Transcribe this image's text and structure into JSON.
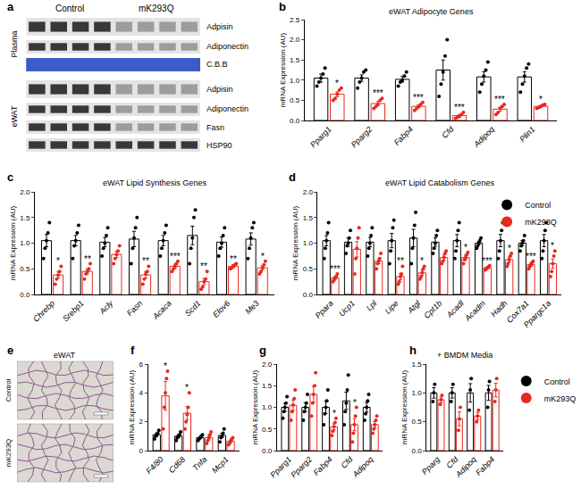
{
  "blot": {
    "panel_label": "a",
    "groups": [
      "Control",
      "mK293Q"
    ],
    "sections": [
      {
        "name": "Plasma",
        "rows": [
          {
            "label": "Adpisin",
            "reduced": true
          },
          {
            "label": "Adiponectin",
            "reduced": true
          },
          {
            "label": "C.B.B",
            "reduced": false,
            "kind": "stain"
          }
        ]
      },
      {
        "name": "eWAT",
        "rows": [
          {
            "label": "Adpisin",
            "reduced": true
          },
          {
            "label": "Adiponectin",
            "reduced": true
          },
          {
            "label": "Fasn",
            "reduced": true
          },
          {
            "label": "HSP90",
            "reduced": false
          }
        ]
      }
    ]
  },
  "histology": {
    "panel_label": "e",
    "title": "eWAT",
    "rows": [
      "Control",
      "mK293Q"
    ]
  },
  "chart_data": [
    {
      "type": "bar",
      "panel_label": "b",
      "title": "eWAT Adipocyte Genes",
      "y_label": "mRNA Expression (AU)",
      "categories": [
        "Pparg1",
        "Pparg2",
        "Fabp4",
        "Cfd",
        "Adipoq",
        "Plin1"
      ],
      "ylim": [
        0,
        2.5
      ],
      "yticks": [
        {
          "value": 0,
          "label": "0.0"
        },
        {
          "value": 0.5,
          "label": "0.5"
        },
        {
          "value": 1,
          "label": "1.0"
        },
        {
          "value": 1.5,
          "label": "1.5"
        },
        {
          "value": 2,
          "label": "2.0"
        },
        {
          "value": 2.5,
          "label": "2.5"
        }
      ],
      "series": [
        {
          "name": "Control",
          "color": "#000000",
          "values": [
            1.05,
            1.05,
            1.02,
            1.25,
            1.08,
            1.08
          ],
          "errors": [
            0.1,
            0.08,
            0.07,
            0.25,
            0.13,
            0.13
          ],
          "points": [
            [
              0.85,
              0.95,
              1.05,
              1.15,
              1.3
            ],
            [
              0.8,
              0.95,
              1.05,
              1.2,
              1.25
            ],
            [
              0.85,
              0.95,
              1.0,
              1.1,
              1.2
            ],
            [
              0.6,
              0.9,
              1.2,
              1.6,
              2.0
            ],
            [
              0.7,
              0.9,
              1.1,
              1.25,
              1.45
            ],
            [
              0.7,
              0.9,
              1.1,
              1.3,
              1.4
            ]
          ]
        },
        {
          "name": "mK293Q",
          "color": "#e8281e",
          "values": [
            0.65,
            0.42,
            0.35,
            0.12,
            0.28,
            0.35
          ],
          "errors": [
            0.06,
            0.05,
            0.04,
            0.03,
            0.05,
            0.02
          ],
          "points": [
            [
              0.5,
              0.55,
              0.65,
              0.75,
              0.8
            ],
            [
              0.3,
              0.35,
              0.4,
              0.5,
              0.55
            ],
            [
              0.25,
              0.3,
              0.35,
              0.4,
              0.45
            ],
            [
              0.05,
              0.08,
              0.1,
              0.15,
              0.2
            ],
            [
              0.15,
              0.2,
              0.3,
              0.35,
              0.4
            ],
            [
              0.3,
              0.32,
              0.35,
              0.38,
              0.4
            ]
          ],
          "significance": [
            "*",
            "***",
            "***",
            "***",
            "***",
            "*"
          ]
        }
      ]
    },
    {
      "type": "bar",
      "panel_label": "c",
      "title": "eWAT Lipid Synthesis Genes",
      "y_label": "mRNA Expression (AU)",
      "categories": [
        "Chrebp",
        "Srebp1",
        "Acly",
        "Fasn",
        "Acaca",
        "Scd1",
        "Elov6",
        "Me3"
      ],
      "ylim": [
        0,
        2
      ],
      "yticks": [
        {
          "value": 0,
          "label": "0.0"
        },
        {
          "value": 0.5,
          "label": "0.5"
        },
        {
          "value": 1,
          "label": "1.0"
        },
        {
          "value": 1.5,
          "label": "1.5"
        },
        {
          "value": 2,
          "label": "2.0"
        }
      ],
      "series": [
        {
          "name": "Control",
          "color": "#000000",
          "values": [
            1.05,
            1.05,
            1.02,
            1.08,
            1.05,
            1.15,
            1.02,
            1.08
          ],
          "errors": [
            0.12,
            0.1,
            0.09,
            0.15,
            0.1,
            0.18,
            0.1,
            0.12
          ],
          "points": [
            [
              0.7,
              0.9,
              1.05,
              1.2,
              1.4
            ],
            [
              0.7,
              0.95,
              1.05,
              1.2,
              1.35
            ],
            [
              0.75,
              0.9,
              1.0,
              1.15,
              1.3
            ],
            [
              0.6,
              0.9,
              1.1,
              1.3,
              1.5
            ],
            [
              0.75,
              0.9,
              1.05,
              1.2,
              1.35
            ],
            [
              0.6,
              0.9,
              1.1,
              1.5,
              1.65
            ],
            [
              0.75,
              0.9,
              1.0,
              1.15,
              1.3
            ],
            [
              0.7,
              0.9,
              1.1,
              1.3,
              1.4
            ]
          ]
        },
        {
          "name": "mK293Q",
          "color": "#e8281e",
          "values": [
            0.38,
            0.45,
            0.78,
            0.38,
            0.55,
            0.25,
            0.55,
            0.52
          ],
          "errors": [
            0.06,
            0.05,
            0.06,
            0.06,
            0.04,
            0.06,
            0.03,
            0.04
          ],
          "points": [
            [
              0.2,
              0.3,
              0.38,
              0.45,
              0.55
            ],
            [
              0.3,
              0.4,
              0.45,
              0.5,
              0.6
            ],
            [
              0.6,
              0.7,
              0.78,
              0.85,
              0.95
            ],
            [
              0.2,
              0.3,
              0.4,
              0.45,
              0.55
            ],
            [
              0.45,
              0.5,
              0.55,
              0.6,
              0.65
            ],
            [
              0.1,
              0.15,
              0.25,
              0.3,
              0.45
            ],
            [
              0.5,
              0.52,
              0.55,
              0.58,
              0.6
            ],
            [
              0.4,
              0.45,
              0.52,
              0.58,
              0.65
            ]
          ],
          "significance": [
            "*",
            "**",
            null,
            "**",
            "***",
            "**",
            "**",
            "*"
          ]
        }
      ]
    },
    {
      "type": "bar",
      "panel_label": "d",
      "title": "eWAT Lipid Catabolism Genes",
      "y_label": "mRNA Expression (AU)",
      "categories": [
        "Ppara",
        "Ucp1",
        "Lpl",
        "Lipe",
        "Atgl",
        "Cpt1b",
        "Acadl",
        "Acadm",
        "Hadh",
        "Cox7a1",
        "Ppargc1a"
      ],
      "ylim": [
        0,
        2
      ],
      "yticks": [
        {
          "value": 0,
          "label": "0.0"
        },
        {
          "value": 0.5,
          "label": "0.5"
        },
        {
          "value": 1,
          "label": "1.0"
        },
        {
          "value": 1.5,
          "label": "1.5"
        },
        {
          "value": 2,
          "label": "2.0"
        }
      ],
      "legend": "top right",
      "series": [
        {
          "name": "Control",
          "color": "#000000",
          "values": [
            1.05,
            1.02,
            1.02,
            1.05,
            1.1,
            1.02,
            1.05,
            1.0,
            1.05,
            1.0,
            1.05
          ],
          "errors": [
            0.1,
            0.08,
            0.09,
            0.14,
            0.17,
            0.08,
            0.12,
            0.03,
            0.12,
            0.05,
            0.12
          ],
          "points": [
            [
              0.7,
              0.9,
              1.05,
              1.2,
              1.4
            ],
            [
              0.8,
              0.95,
              1.0,
              1.1,
              1.25
            ],
            [
              0.75,
              0.9,
              1.0,
              1.15,
              1.3
            ],
            [
              0.6,
              0.85,
              1.05,
              1.3,
              1.45
            ],
            [
              0.6,
              0.9,
              1.1,
              1.35,
              1.6
            ],
            [
              0.8,
              0.9,
              1.0,
              1.15,
              1.25
            ],
            [
              0.7,
              0.85,
              1.05,
              1.25,
              1.4
            ],
            [
              0.9,
              0.95,
              1.0,
              1.05,
              1.1
            ],
            [
              0.7,
              0.85,
              1.05,
              1.25,
              1.4
            ],
            [
              0.85,
              0.95,
              1.0,
              1.05,
              1.15
            ],
            [
              0.7,
              0.85,
              1.05,
              1.25,
              1.4
            ]
          ]
        },
        {
          "name": "mK293Q",
          "color": "#e8281e",
          "values": [
            0.32,
            0.88,
            0.65,
            0.35,
            0.42,
            0.72,
            0.72,
            0.52,
            0.68,
            0.58,
            0.6
          ],
          "errors": [
            0.03,
            0.15,
            0.05,
            0.06,
            0.05,
            0.05,
            0.04,
            0.02,
            0.05,
            0.03,
            0.09
          ],
          "points": [
            [
              0.25,
              0.28,
              0.32,
              0.35,
              0.4
            ],
            [
              0.4,
              0.7,
              0.9,
              1.1,
              1.3
            ],
            [
              0.5,
              0.6,
              0.65,
              0.7,
              0.8
            ],
            [
              0.2,
              0.25,
              0.35,
              0.4,
              0.55
            ],
            [
              0.3,
              0.35,
              0.42,
              0.5,
              0.55
            ],
            [
              0.6,
              0.65,
              0.72,
              0.8,
              0.85
            ],
            [
              0.6,
              0.68,
              0.72,
              0.78,
              0.82
            ],
            [
              0.48,
              0.5,
              0.52,
              0.54,
              0.56
            ],
            [
              0.55,
              0.6,
              0.68,
              0.75,
              0.8
            ],
            [
              0.5,
              0.55,
              0.58,
              0.62,
              0.65
            ],
            [
              0.35,
              0.45,
              0.6,
              0.75,
              0.85
            ]
          ],
          "significance": [
            "***",
            null,
            null,
            "**",
            "*",
            null,
            "*",
            "***",
            "*",
            "***",
            "*"
          ]
        }
      ]
    },
    {
      "type": "bar",
      "panel_label": "f",
      "y_label": "mRNA Expression (AU)",
      "categories": [
        "F4/80",
        "Cd68",
        "Tnfa",
        "Mcp1"
      ],
      "ylim": [
        0,
        6
      ],
      "yticks": [
        0,
        2,
        4,
        6
      ],
      "series": [
        {
          "name": "Control",
          "color": "#000000",
          "values": [
            1.1,
            1.0,
            0.9,
            1.05
          ],
          "errors": [
            0.12,
            0.1,
            0.07,
            0.15
          ],
          "points": [
            [
              0.8,
              1.0,
              1.1,
              1.2,
              1.4
            ],
            [
              0.7,
              0.9,
              1.0,
              1.1,
              1.3
            ],
            [
              0.7,
              0.8,
              0.9,
              1.0,
              1.1
            ],
            [
              0.6,
              0.9,
              1.0,
              1.2,
              1.5
            ]
          ]
        },
        {
          "name": "mK293Q",
          "color": "#e8281e",
          "values": [
            3.8,
            2.6,
            0.9,
            0.65
          ],
          "errors": [
            1.0,
            0.45,
            0.15,
            0.09
          ],
          "points": [
            [
              1.5,
              3.0,
              4.0,
              5.0,
              5.5
            ],
            [
              1.5,
              2.0,
              2.5,
              3.0,
              4.0
            ],
            [
              0.5,
              0.7,
              0.9,
              1.1,
              1.3
            ],
            [
              0.4,
              0.5,
              0.65,
              0.8,
              0.9
            ]
          ],
          "significance": [
            "*",
            "*",
            null,
            null
          ]
        }
      ]
    },
    {
      "type": "bar",
      "panel_label": "g",
      "y_label": "mRNA Expression (AU)",
      "categories": [
        "Pparg1",
        "Pparg2",
        "Fabp4",
        "Cfd",
        "Adipoq"
      ],
      "ylim": [
        0,
        2
      ],
      "yticks": [
        {
          "value": 0,
          "label": "0.0"
        },
        {
          "value": 0.5,
          "label": "0.5"
        },
        {
          "value": 1,
          "label": "1.0"
        },
        {
          "value": 1.5,
          "label": "1.5"
        },
        {
          "value": 2,
          "label": "2.0"
        }
      ],
      "series": [
        {
          "name": "Control",
          "color": "#000000",
          "values": [
            1.0,
            1.0,
            1.0,
            1.15,
            1.0
          ],
          "errors": [
            0.09,
            0.1,
            0.14,
            0.2,
            0.11
          ],
          "points": [
            [
              0.75,
              0.9,
              1.0,
              1.1,
              1.25
            ],
            [
              0.7,
              0.9,
              1.0,
              1.1,
              1.3
            ],
            [
              0.6,
              0.85,
              1.0,
              1.15,
              1.4
            ],
            [
              0.6,
              0.9,
              1.1,
              1.4,
              1.75
            ],
            [
              0.7,
              0.85,
              1.0,
              1.15,
              1.3
            ]
          ]
        },
        {
          "name": "mK293Q",
          "color": "#e8281e",
          "values": [
            1.05,
            1.3,
            0.55,
            0.6,
            0.6
          ],
          "errors": [
            0.12,
            0.18,
            0.07,
            0.14,
            0.07
          ],
          "points": [
            [
              0.7,
              0.9,
              1.05,
              1.2,
              1.4
            ],
            [
              0.8,
              1.1,
              1.3,
              1.5,
              1.8
            ],
            [
              0.35,
              0.45,
              0.55,
              0.65,
              0.75
            ],
            [
              0.2,
              0.4,
              0.6,
              0.8,
              1.0
            ],
            [
              0.4,
              0.5,
              0.6,
              0.7,
              0.8
            ]
          ],
          "significance": [
            null,
            null,
            "*",
            "*",
            null
          ]
        }
      ]
    },
    {
      "type": "bar",
      "panel_label": "h",
      "title": "+ BMDM Media",
      "y_label": "mRNA Expression (AU)",
      "categories": [
        "Pparg",
        "Cfd",
        "Adipoq",
        "Fabp4"
      ],
      "ylim": [
        0,
        1.5
      ],
      "yticks": [
        {
          "value": 0,
          "label": "0.0"
        },
        {
          "value": 0.5,
          "label": "0.5"
        },
        {
          "value": 1,
          "label": "1.0"
        },
        {
          "value": 1.5,
          "label": "1.5"
        }
      ],
      "legend": "right",
      "series": [
        {
          "name": "Control",
          "color": "#000000",
          "values": [
            1.0,
            1.0,
            1.0,
            1.0
          ],
          "errors": [
            0.09,
            0.09,
            0.16,
            0.13
          ],
          "points": [
            [
              0.85,
              1.0,
              1.15
            ],
            [
              0.85,
              1.0,
              1.15
            ],
            [
              0.7,
              1.05,
              1.25
            ],
            [
              0.75,
              1.05,
              1.2
            ]
          ]
        },
        {
          "name": "mK293Q",
          "color": "#e8281e",
          "values": [
            0.88,
            0.55,
            0.6,
            1.05
          ],
          "errors": [
            0.05,
            0.12,
            0.06,
            0.12
          ],
          "points": [
            [
              0.8,
              0.88,
              0.96
            ],
            [
              0.35,
              0.55,
              0.75
            ],
            [
              0.5,
              0.6,
              0.7
            ],
            [
              0.85,
              1.05,
              1.25
            ]
          ]
        }
      ]
    }
  ]
}
